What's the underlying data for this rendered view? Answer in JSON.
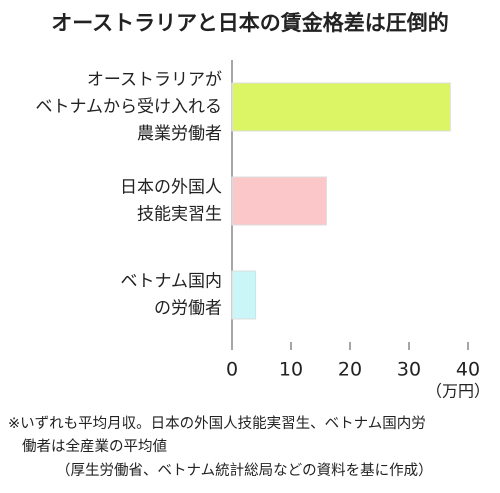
{
  "chart_data": {
    "type": "bar",
    "orientation": "horizontal",
    "title": "オーストラリアと日本の賃金格差は圧倒的",
    "categories": [
      "オーストラリアが\nベトナムから受け入れる\n農業労働者",
      "日本の外国人\n技能実習生",
      "ベトナム国内\nの労働者"
    ],
    "values": [
      37,
      16,
      4
    ],
    "colors": [
      "#dcf565",
      "#fcc7c9",
      "#caf6f8"
    ],
    "xlim": [
      0,
      40
    ],
    "xticks": [
      0,
      10,
      20,
      30,
      40
    ],
    "x_unit": "（万円）",
    "notes": [
      "※いずれも平均月収。日本の外国人技能実習生、ベトナム国内労",
      "働者は全産業の平均値",
      "（厚生労働省、ベトナム統計総局などの資料を基に作成）"
    ]
  }
}
